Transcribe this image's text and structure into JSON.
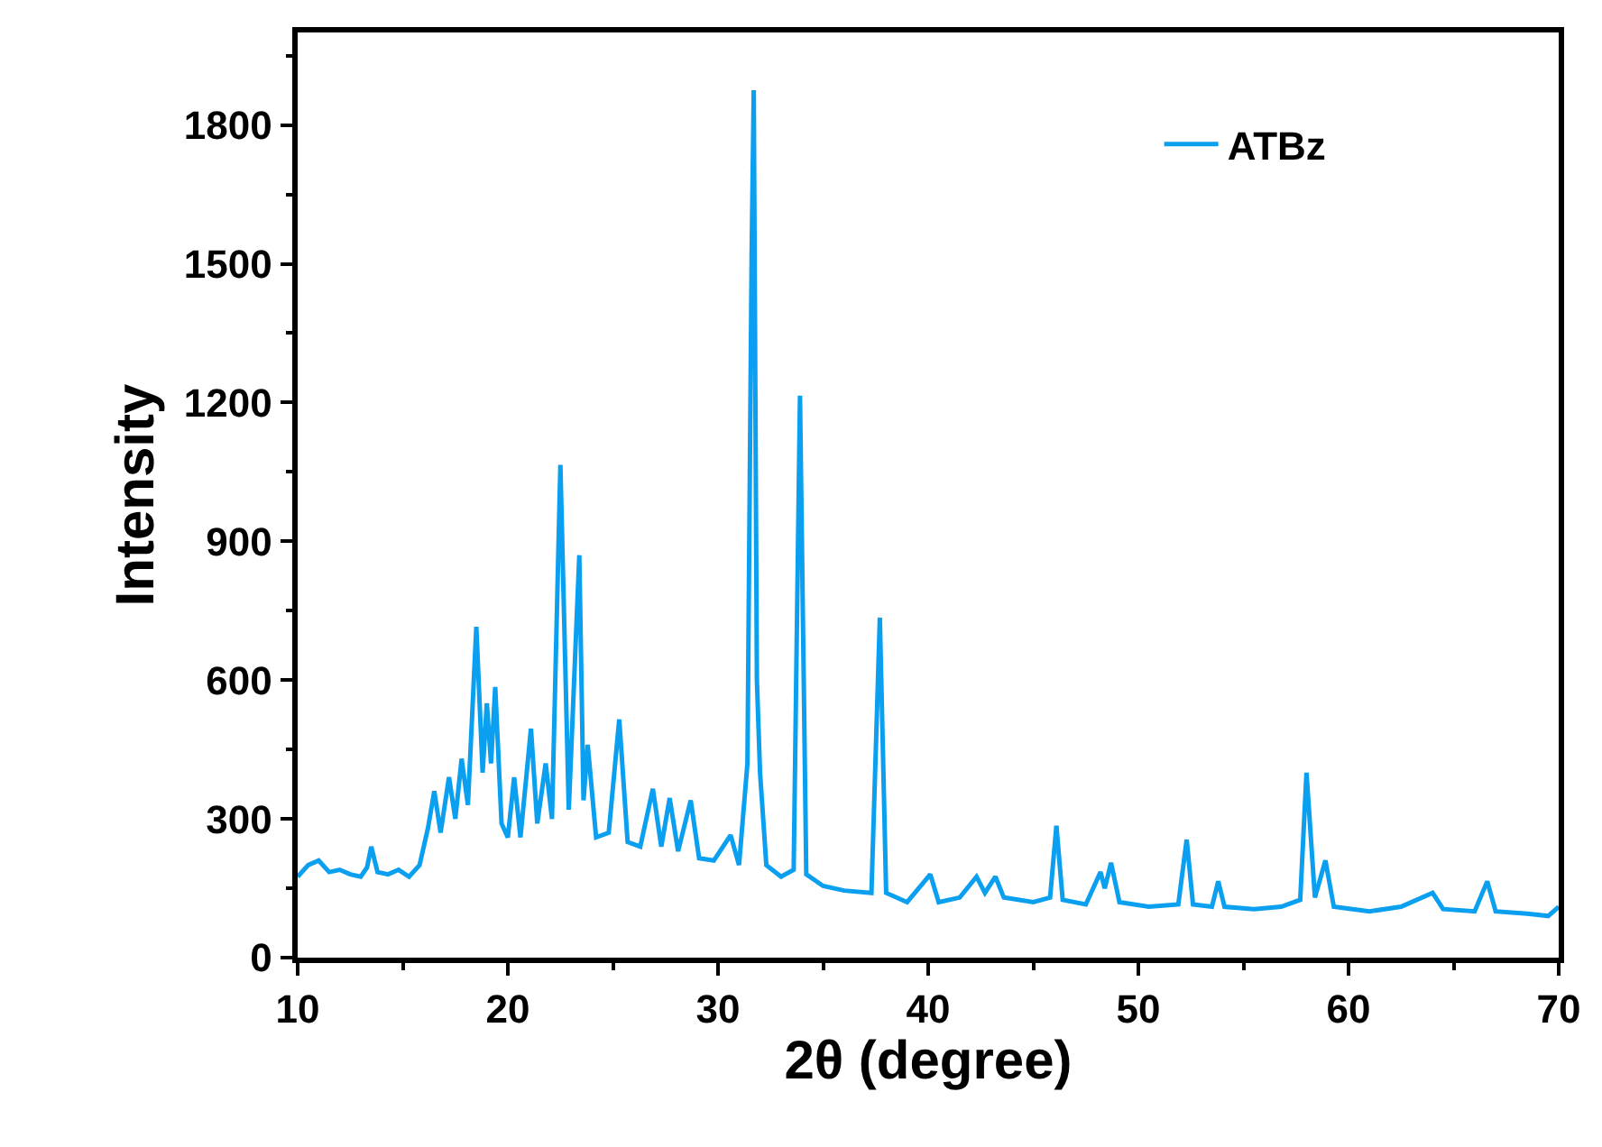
{
  "chart_data": {
    "type": "line",
    "xlabel": "2θ (degree)",
    "ylabel": "Intensity",
    "xlim": [
      10,
      70
    ],
    "xticks": [
      10,
      20,
      30,
      40,
      50,
      60,
      70
    ],
    "ylim": [
      0,
      2000
    ],
    "yticks": [
      0,
      300,
      600,
      900,
      1200,
      1500,
      1800
    ],
    "legend": "top right",
    "marker": "none",
    "line_style": "solid",
    "series": [
      {
        "name": "ATBz",
        "color": "#0b9ff0",
        "x": [
          10,
          10.5,
          11,
          11.5,
          12,
          12.5,
          13,
          13.3,
          13.5,
          13.8,
          14.3,
          14.8,
          15.3,
          15.8,
          16.2,
          16.5,
          16.8,
          17.2,
          17.5,
          17.8,
          18.1,
          18.5,
          18.8,
          19.0,
          19.2,
          19.4,
          19.7,
          20.0,
          20.3,
          20.6,
          21.1,
          21.4,
          21.8,
          22.1,
          22.5,
          22.9,
          23.4,
          23.6,
          23.8,
          24.2,
          24.8,
          25.3,
          25.7,
          26.3,
          26.9,
          27.3,
          27.7,
          28.1,
          28.7,
          29.1,
          29.8,
          30.6,
          31.0,
          31.4,
          31.6,
          31.7,
          31.85,
          32.0,
          32.3,
          33.0,
          33.6,
          33.9,
          34.2,
          35.0,
          36.0,
          37.3,
          37.7,
          38.0,
          39.0,
          40.1,
          40.5,
          41.5,
          42.3,
          42.7,
          43.2,
          43.6,
          45.0,
          45.8,
          46.1,
          46.4,
          47.5,
          48.2,
          48.4,
          48.7,
          49.1,
          50.5,
          51.9,
          52.3,
          52.6,
          53.5,
          53.8,
          54.1,
          55.5,
          56.8,
          57.7,
          58.0,
          58.4,
          58.9,
          59.3,
          61.0,
          62.5,
          64.0,
          64.5,
          66.0,
          66.6,
          67.0,
          68.5,
          69.5,
          70
        ],
        "values": [
          175,
          200,
          210,
          185,
          190,
          180,
          175,
          195,
          240,
          185,
          180,
          190,
          175,
          200,
          280,
          360,
          270,
          390,
          300,
          430,
          330,
          715,
          400,
          550,
          420,
          585,
          290,
          260,
          390,
          260,
          495,
          290,
          420,
          300,
          1065,
          320,
          870,
          340,
          460,
          260,
          270,
          515,
          250,
          240,
          365,
          240,
          345,
          230,
          340,
          215,
          210,
          265,
          200,
          420,
          1520,
          1875,
          600,
          400,
          200,
          175,
          190,
          1215,
          180,
          155,
          145,
          140,
          735,
          140,
          120,
          180,
          120,
          130,
          175,
          140,
          175,
          130,
          120,
          130,
          285,
          125,
          115,
          185,
          150,
          205,
          120,
          110,
          115,
          255,
          115,
          110,
          165,
          110,
          105,
          110,
          125,
          400,
          130,
          210,
          110,
          100,
          110,
          140,
          105,
          100,
          165,
          100,
          95,
          90,
          110
        ]
      }
    ]
  }
}
